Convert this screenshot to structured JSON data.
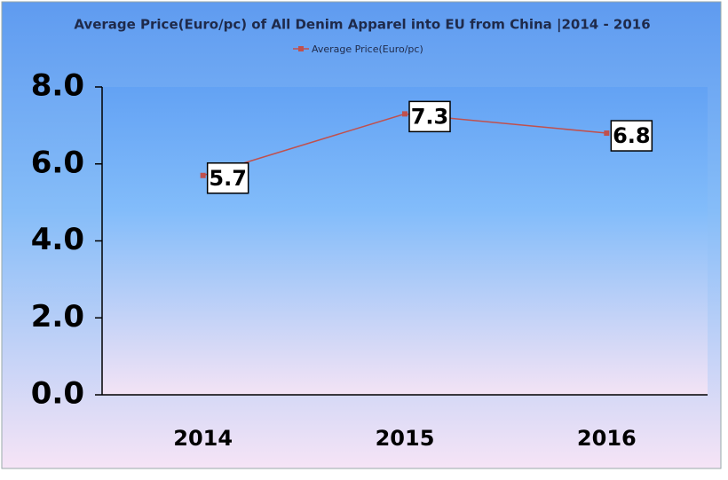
{
  "chart_data": {
    "type": "line",
    "title": "Average Price(Euro/pc) of All Denim Apparel into EU from China |2014 - 2016",
    "categories": [
      "2014",
      "2015",
      "2016"
    ],
    "series": [
      {
        "name": "Average Price(Euro/pc)",
        "color": "#c0504d",
        "values": [
          5.7,
          7.3,
          6.8
        ]
      }
    ],
    "ylim": [
      0,
      8
    ],
    "yticks": [
      {
        "value": 0,
        "label": "0.0"
      },
      {
        "value": 2,
        "label": "2.0"
      },
      {
        "value": 4,
        "label": "4.0"
      },
      {
        "value": 6,
        "label": "6.0"
      },
      {
        "value": 8,
        "label": "8.0"
      }
    ],
    "legend": "top"
  }
}
